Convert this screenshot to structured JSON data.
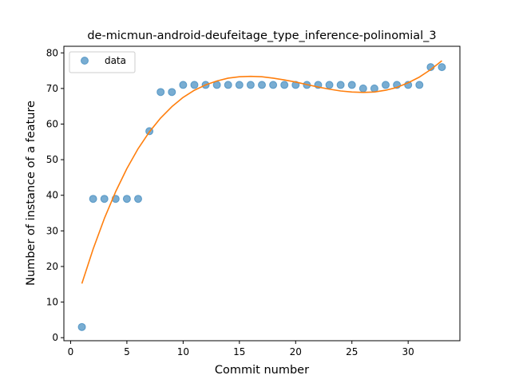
{
  "chart_data": {
    "type": "scatter",
    "title": "de-micmun-android-deufeitage_type_inference-polinomial_3",
    "xlabel": "Commit number",
    "ylabel": "Number of instance of a feature",
    "xlim": [
      -0.6,
      34.6
    ],
    "ylim": [
      -0.85,
      81.85
    ],
    "xticks": [
      0,
      5,
      10,
      15,
      20,
      25,
      30
    ],
    "yticks": [
      0,
      10,
      20,
      30,
      40,
      50,
      60,
      70,
      80
    ],
    "grid": false,
    "legend": {
      "position": "top-left",
      "entries": [
        "data"
      ]
    },
    "colors": {
      "data": "#1f77b4",
      "fit": "#ff7f0e"
    },
    "series": [
      {
        "name": "data",
        "style": "markers",
        "x": [
          1,
          2,
          3,
          4,
          5,
          6,
          7,
          8,
          9,
          10,
          11,
          12,
          13,
          14,
          15,
          16,
          17,
          18,
          19,
          20,
          21,
          22,
          23,
          24,
          25,
          26,
          27,
          28,
          29,
          30,
          31,
          32,
          33
        ],
        "y": [
          3,
          39,
          39,
          39,
          39,
          39,
          58,
          69,
          69,
          71,
          71,
          71,
          71,
          71,
          71,
          71,
          71,
          71,
          71,
          71,
          71,
          71,
          71,
          71,
          71,
          70,
          70,
          71,
          71,
          71,
          71,
          76,
          76
        ]
      },
      {
        "style": "line",
        "x": [
          1,
          2,
          3,
          4,
          5,
          6,
          7,
          8,
          9,
          10,
          11,
          12,
          13,
          14,
          15,
          16,
          17,
          18,
          19,
          20,
          21,
          22,
          23,
          24,
          25,
          26,
          27,
          28,
          29,
          30,
          31,
          32,
          33
        ],
        "y": [
          15.2,
          24.9,
          33.5,
          41.0,
          47.5,
          53.1,
          57.8,
          61.7,
          64.9,
          67.5,
          69.5,
          71.0,
          72.1,
          72.9,
          73.3,
          73.4,
          73.3,
          72.9,
          72.4,
          71.8,
          71.1,
          70.4,
          69.8,
          69.3,
          69.0,
          68.9,
          69.0,
          69.5,
          70.3,
          71.6,
          73.2,
          75.3,
          77.8
        ]
      }
    ]
  }
}
